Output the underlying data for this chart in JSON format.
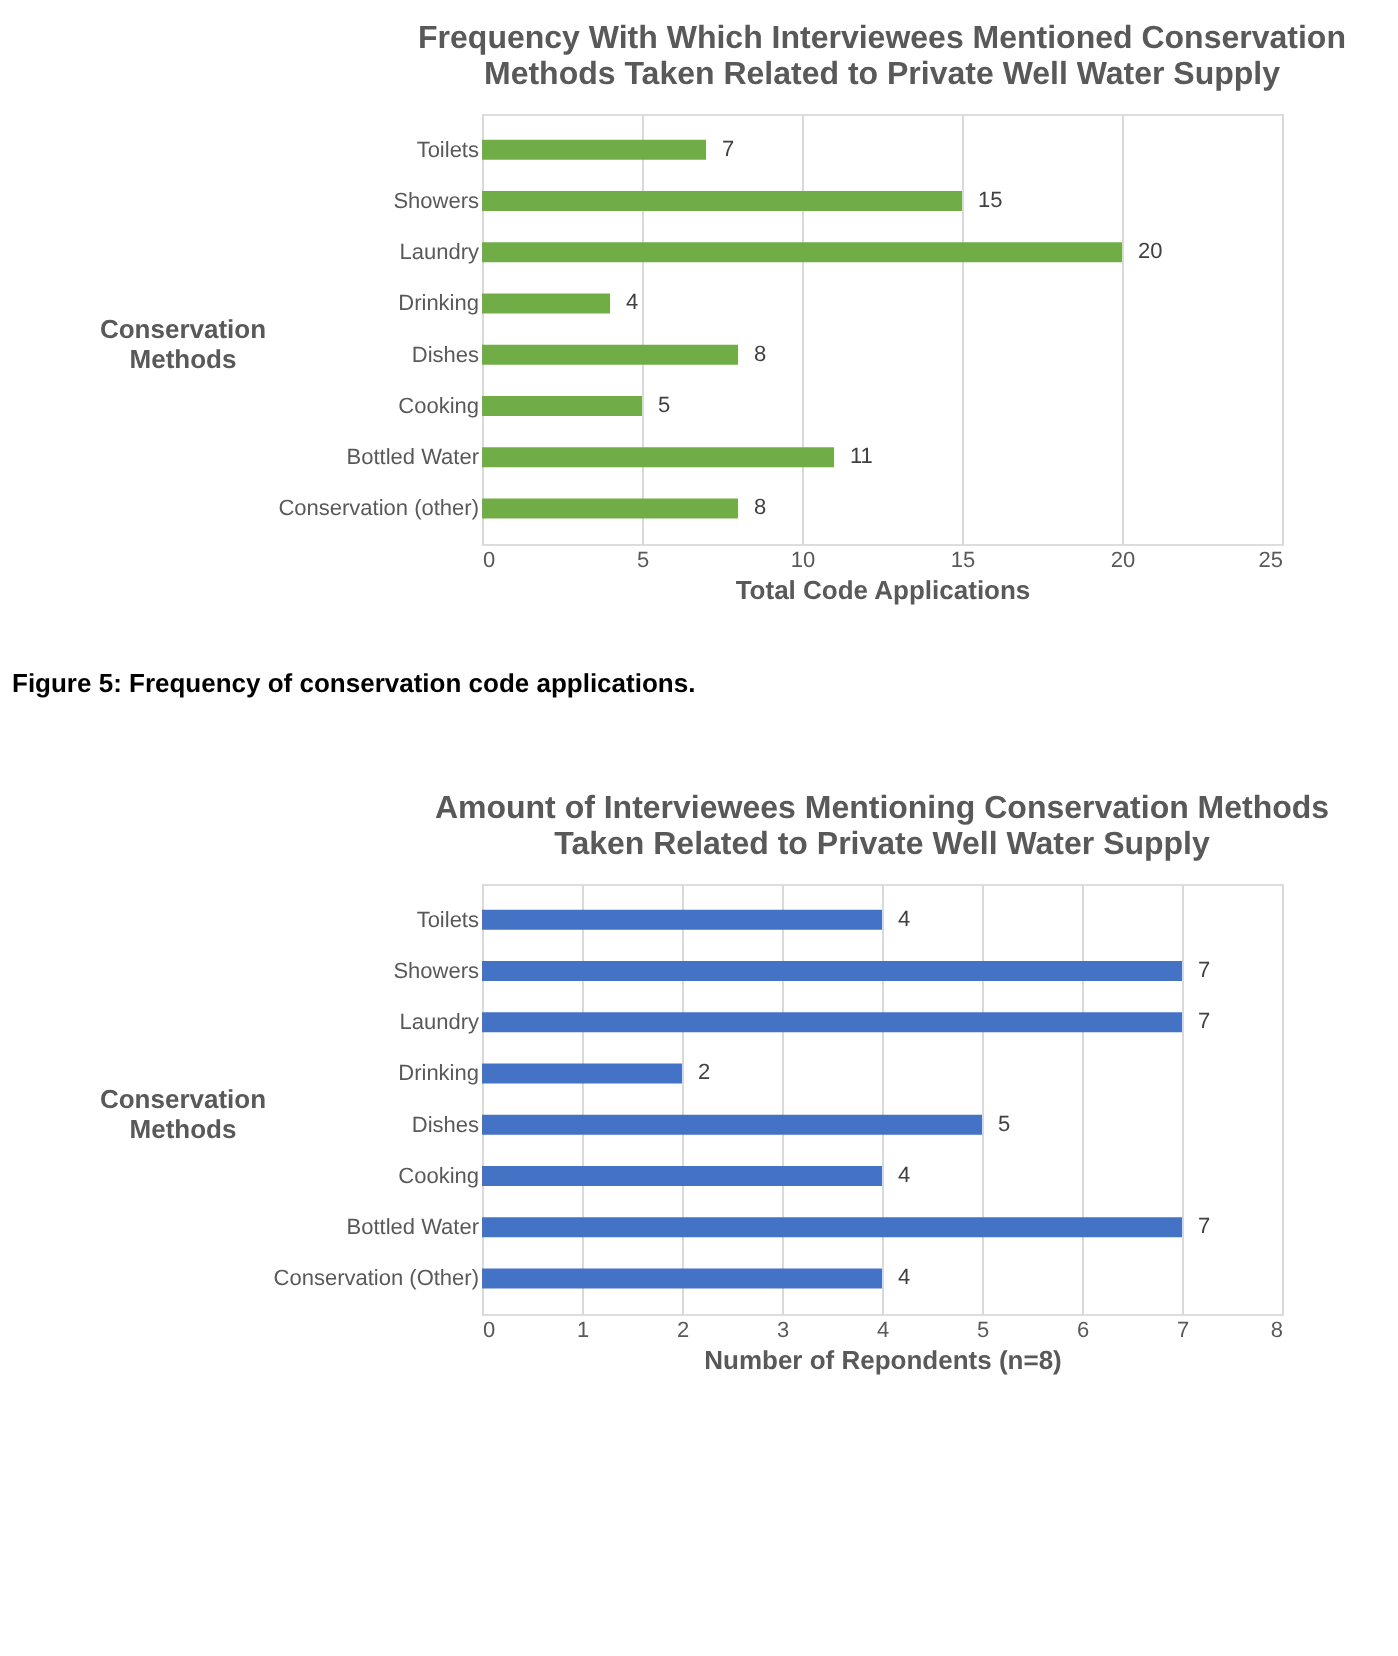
{
  "chart_data": [
    {
      "type": "bar",
      "orientation": "horizontal",
      "title": "Frequency With Which Interviewees Mentioned Conservation Methods Taken Related to Private Well Water Supply",
      "xlabel": "Total Code Applications",
      "ylabel": "Conservation Methods",
      "categories": [
        "Toilets",
        "Showers",
        "Laundry",
        "Drinking",
        "Dishes",
        "Cooking",
        "Bottled Water",
        "Conservation (other)"
      ],
      "series": [
        {
          "color": "#70ad47",
          "values": [
            7,
            15,
            20,
            4,
            8,
            5,
            11,
            8
          ]
        }
      ],
      "xlim": [
        0,
        25
      ],
      "xticks": [
        0,
        5,
        10,
        15,
        20,
        25
      ],
      "grid": "x",
      "data_labels": true,
      "annotations": [
        "Figure 5: Frequency of conservation code applications."
      ]
    },
    {
      "type": "bar",
      "orientation": "horizontal",
      "title": "Amount of Interviewees Mentioning Conservation Methods Taken Related to Private Well Water Supply",
      "xlabel": "Number of Repondents (n=8)",
      "ylabel": "Conservation Methods",
      "categories": [
        "Toilets",
        "Showers",
        "Laundry",
        "Drinking",
        "Dishes",
        "Cooking",
        "Bottled Water",
        "Conservation (Other)"
      ],
      "series": [
        {
          "color": "#4472c4",
          "values": [
            4,
            7,
            7,
            2,
            5,
            4,
            7,
            4
          ]
        }
      ],
      "xlim": [
        0,
        8
      ],
      "xticks": [
        0,
        1,
        2,
        3,
        4,
        5,
        6,
        7,
        8
      ],
      "grid": "x",
      "data_labels": true
    }
  ]
}
